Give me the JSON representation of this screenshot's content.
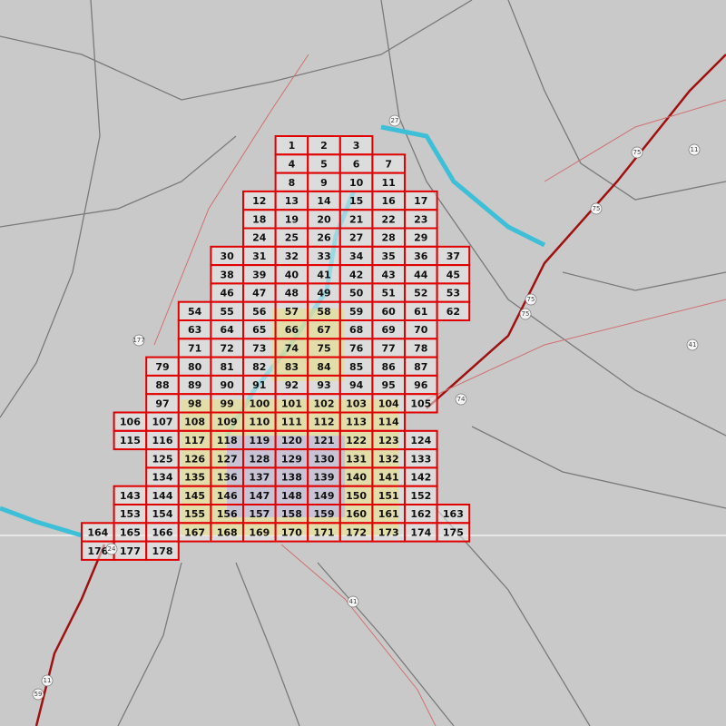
{
  "grid": {
    "rows": [
      [
        1,
        2,
        3
      ],
      [
        4,
        5,
        6,
        7
      ],
      [
        8,
        9,
        10,
        11
      ],
      [
        12,
        13,
        14,
        15,
        16,
        17
      ],
      [
        18,
        19,
        20,
        21,
        22,
        23
      ],
      [
        24,
        25,
        26,
        27,
        28,
        29
      ],
      [
        30,
        31,
        32,
        33,
        34,
        35,
        36,
        37
      ],
      [
        38,
        39,
        40,
        41,
        42,
        43,
        44,
        45
      ],
      [
        46,
        47,
        48,
        49,
        50,
        51,
        52,
        53
      ],
      [
        54,
        55,
        56,
        57,
        58,
        59,
        60,
        61,
        62
      ],
      [
        63,
        64,
        65,
        66,
        67,
        68,
        69,
        70
      ],
      [
        71,
        72,
        73,
        74,
        75,
        76,
        77,
        78
      ],
      [
        79,
        80,
        81,
        82,
        83,
        84,
        85,
        86,
        87
      ],
      [
        88,
        89,
        90,
        91,
        92,
        93,
        94,
        95,
        96
      ],
      [
        97,
        98,
        99,
        100,
        101,
        102,
        103,
        104,
        105
      ],
      [
        106,
        107,
        108,
        109,
        110,
        111,
        112,
        113,
        114
      ],
      [
        115,
        116,
        117,
        118,
        119,
        120,
        121,
        122,
        123,
        124
      ],
      [
        125,
        126,
        127,
        128,
        129,
        130,
        131,
        132,
        133
      ],
      [
        134,
        135,
        136,
        137,
        138,
        139,
        140,
        141,
        142
      ],
      [
        143,
        144,
        145,
        146,
        147,
        148,
        149,
        150,
        151,
        152
      ],
      [
        153,
        154,
        155,
        156,
        157,
        158,
        159,
        160,
        161,
        162,
        163
      ],
      [
        164,
        165,
        166,
        167,
        168,
        169,
        170,
        171,
        172,
        173,
        174,
        175
      ],
      [
        176,
        177,
        178
      ]
    ]
  },
  "map_labels": [
    "27",
    "75",
    "75",
    "75",
    "75",
    "11",
    "11",
    "41",
    "41",
    "177",
    "74",
    "24",
    "59"
  ]
}
